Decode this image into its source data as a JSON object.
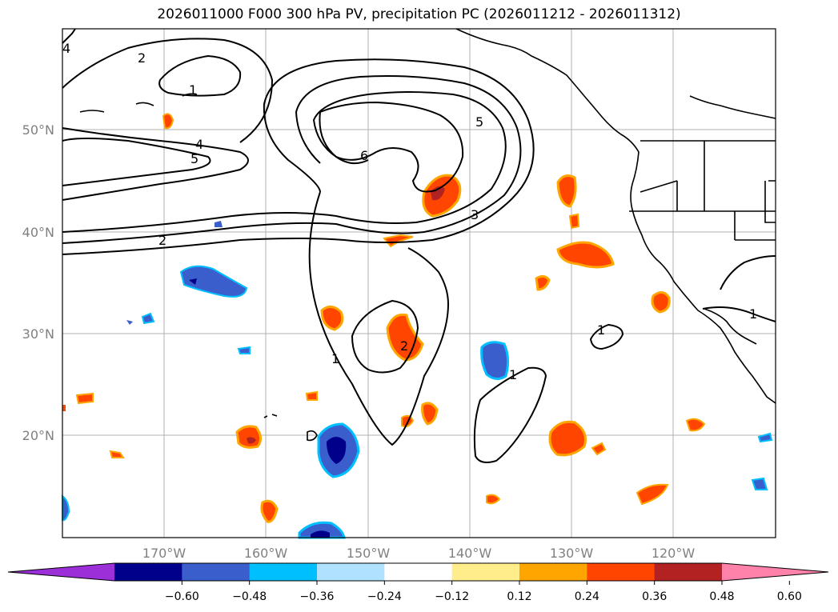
{
  "title": "2026011000 F000 300 hPa PV, precipitation PC (2026011212 - 2026011312)",
  "lat_labels": [
    "50°N",
    "40°N",
    "30°N",
    "20°N"
  ],
  "lon_labels": [
    "170°W",
    "160°W",
    "150°W",
    "140°W",
    "130°W",
    "120°W"
  ],
  "contour_labels": [
    "4",
    "2",
    "1",
    "4",
    "5",
    "6",
    "5",
    "3",
    "2",
    "1",
    "2",
    "1",
    "1",
    "1"
  ],
  "colorbar": {
    "colors": [
      "#9b30d9",
      "#00008b",
      "#3a5fcd",
      "#00bfff",
      "#b0e2ff",
      "#ffffff",
      "#ffec8b",
      "#ffa500",
      "#ff4500",
      "#b22222",
      "#ff82ab"
    ],
    "tick_labels": [
      "−0.60",
      "−0.48",
      "−0.36",
      "−0.24",
      "−0.12",
      "0.12",
      "0.24",
      "0.36",
      "0.48",
      "0.60"
    ]
  },
  "colors": {
    "grid": "#b0b0b0",
    "coastline": "#000000",
    "contour": "#000000"
  }
}
